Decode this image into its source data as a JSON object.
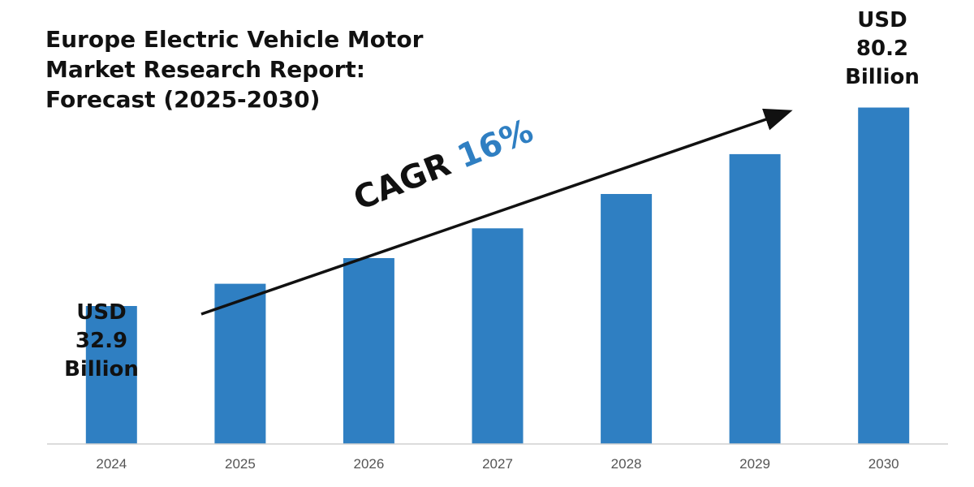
{
  "chart_data": {
    "type": "bar",
    "title": "Europe Electric Vehicle Motor Market Research Report: Forecast (2025-2030)",
    "title_lines": [
      "Europe Electric Vehicle Motor",
      "Market Research Report:",
      "Forecast (2025-2030)"
    ],
    "categories": [
      "2024",
      "2025",
      "2026",
      "2027",
      "2028",
      "2029",
      "2030"
    ],
    "values": [
      32.9,
      38.2,
      44.3,
      51.4,
      59.6,
      69.1,
      80.2
    ],
    "unit": "USD Billion",
    "ylim": [
      0,
      95
    ],
    "xlabel": "",
    "ylabel": "",
    "grid": false,
    "bar_color": "#2f7fc2",
    "annotations": {
      "start_label": [
        "USD",
        "32.9",
        "Billion"
      ],
      "end_label": [
        "USD",
        "80.2",
        "Billion"
      ],
      "cagr_prefix": "CAGR",
      "cagr_value": "16%",
      "cagr_value_color": "#2f7fc2"
    }
  }
}
